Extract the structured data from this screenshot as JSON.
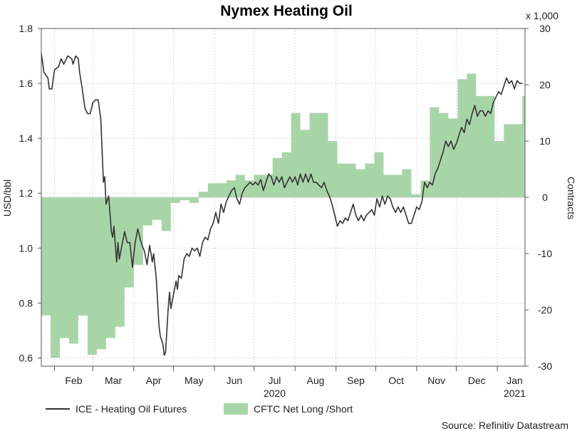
{
  "chart_data": {
    "type": "line",
    "title": "Nymex Heating Oil",
    "source": "Source: Refinitiv Datastream",
    "left_axis": {
      "label": "USD/bbl",
      "range": [
        0.57,
        1.8
      ],
      "ticks": [
        "0.6",
        "0.8",
        "1.0",
        "1.2",
        "1.4",
        "1.6",
        "1.8"
      ]
    },
    "right_axis": {
      "label": "Contracts",
      "multiplier": "x 1,000",
      "range": [
        -30,
        30
      ],
      "ticks": [
        "-30",
        "-20",
        "-10",
        "0",
        "10",
        "20",
        "30"
      ]
    },
    "x_months": [
      "Feb",
      "Mar",
      "Apr",
      "May",
      "Jun",
      "Jul",
      "Aug",
      "Sep",
      "Oct",
      "Nov",
      "Dec",
      "Jan"
    ],
    "x_years": [
      "2020",
      "2021"
    ],
    "x_range": [
      "2020-01-22",
      "2021-01-22"
    ],
    "grid": true,
    "legend": {
      "placement": "bottom"
    },
    "series": [
      {
        "name": "ICE - Heating Oil Futures",
        "axis": "left",
        "color": "#333333",
        "points": [
          [
            "2020-01-22",
            1.71
          ],
          [
            "2020-01-24",
            1.64
          ],
          [
            "2020-01-27",
            1.62
          ],
          [
            "2020-01-28",
            1.58
          ],
          [
            "2020-01-30",
            1.58
          ],
          [
            "2020-02-01",
            1.65
          ],
          [
            "2020-02-04",
            1.66
          ],
          [
            "2020-02-06",
            1.69
          ],
          [
            "2020-02-08",
            1.67
          ],
          [
            "2020-02-11",
            1.7
          ],
          [
            "2020-02-14",
            1.69
          ],
          [
            "2020-02-15",
            1.67
          ],
          [
            "2020-02-17",
            1.7
          ],
          [
            "2020-02-19",
            1.69
          ],
          [
            "2020-02-20",
            1.64
          ],
          [
            "2020-02-22",
            1.58
          ],
          [
            "2020-02-24",
            1.51
          ],
          [
            "2020-02-26",
            1.49
          ],
          [
            "2020-02-28",
            1.49
          ],
          [
            "2020-03-01",
            1.53
          ],
          [
            "2020-03-03",
            1.54
          ],
          [
            "2020-03-05",
            1.54
          ],
          [
            "2020-03-07",
            1.47
          ],
          [
            "2020-03-09",
            1.24
          ],
          [
            "2020-03-10",
            1.26
          ],
          [
            "2020-03-11",
            1.16
          ],
          [
            "2020-03-13",
            1.19
          ],
          [
            "2020-03-15",
            1.06
          ],
          [
            "2020-03-16",
            1.04
          ],
          [
            "2020-03-17",
            1.08
          ],
          [
            "2020-03-19",
            0.95
          ],
          [
            "2020-03-20",
            1.02
          ],
          [
            "2020-03-21",
            0.96
          ],
          [
            "2020-03-23",
            1.01
          ],
          [
            "2020-03-25",
            1.06
          ],
          [
            "2020-03-27",
            1.02
          ],
          [
            "2020-03-29",
            1.02
          ],
          [
            "2020-03-31",
            0.93
          ],
          [
            "2020-04-02",
            1.02
          ],
          [
            "2020-04-04",
            1.07
          ],
          [
            "2020-04-06",
            1.03
          ],
          [
            "2020-04-08",
            1.0
          ],
          [
            "2020-04-09",
            0.99
          ],
          [
            "2020-04-11",
            0.94
          ],
          [
            "2020-04-13",
            1.01
          ],
          [
            "2020-04-15",
            0.95
          ],
          [
            "2020-04-16",
            0.98
          ],
          [
            "2020-04-18",
            0.89
          ],
          [
            "2020-04-20",
            0.72
          ],
          [
            "2020-04-21",
            0.68
          ],
          [
            "2020-04-23",
            0.65
          ],
          [
            "2020-04-24",
            0.61
          ],
          [
            "2020-04-25",
            0.62
          ],
          [
            "2020-04-27",
            0.78
          ],
          [
            "2020-04-28",
            0.84
          ],
          [
            "2020-04-29",
            0.78
          ],
          [
            "2020-05-01",
            0.83
          ],
          [
            "2020-05-03",
            0.88
          ],
          [
            "2020-05-04",
            0.85
          ],
          [
            "2020-05-05",
            0.9
          ],
          [
            "2020-05-07",
            0.89
          ],
          [
            "2020-05-09",
            0.96
          ],
          [
            "2020-05-11",
            0.98
          ],
          [
            "2020-05-13",
            0.97
          ],
          [
            "2020-05-15",
            1.0
          ],
          [
            "2020-05-17",
            0.99
          ],
          [
            "2020-05-19",
            1.0
          ],
          [
            "2020-05-21",
            0.97
          ],
          [
            "2020-05-23",
            1.02
          ],
          [
            "2020-05-25",
            1.04
          ],
          [
            "2020-05-27",
            1.03
          ],
          [
            "2020-05-29",
            1.07
          ],
          [
            "2020-05-31",
            1.09
          ],
          [
            "2020-06-02",
            1.13
          ],
          [
            "2020-06-04",
            1.09
          ],
          [
            "2020-06-06",
            1.16
          ],
          [
            "2020-06-08",
            1.13
          ],
          [
            "2020-06-10",
            1.17
          ],
          [
            "2020-06-12",
            1.19
          ],
          [
            "2020-06-14",
            1.21
          ],
          [
            "2020-06-16",
            1.22
          ],
          [
            "2020-06-18",
            1.18
          ],
          [
            "2020-06-20",
            1.16
          ],
          [
            "2020-06-22",
            1.2
          ],
          [
            "2020-06-24",
            1.22
          ],
          [
            "2020-06-26",
            1.23
          ],
          [
            "2020-06-28",
            1.24
          ],
          [
            "2020-06-30",
            1.23
          ],
          [
            "2020-07-02",
            1.24
          ],
          [
            "2020-07-04",
            1.23
          ],
          [
            "2020-07-06",
            1.25
          ],
          [
            "2020-07-08",
            1.21
          ],
          [
            "2020-07-10",
            1.24
          ],
          [
            "2020-07-12",
            1.27
          ],
          [
            "2020-07-14",
            1.26
          ],
          [
            "2020-07-16",
            1.23
          ],
          [
            "2020-07-18",
            1.26
          ],
          [
            "2020-07-20",
            1.24
          ],
          [
            "2020-07-22",
            1.26
          ],
          [
            "2020-07-24",
            1.22
          ],
          [
            "2020-07-26",
            1.24
          ],
          [
            "2020-07-28",
            1.26
          ],
          [
            "2020-07-30",
            1.24
          ],
          [
            "2020-08-01",
            1.26
          ],
          [
            "2020-08-03",
            1.23
          ],
          [
            "2020-08-05",
            1.27
          ],
          [
            "2020-08-07",
            1.24
          ],
          [
            "2020-08-09",
            1.27
          ],
          [
            "2020-08-11",
            1.24
          ],
          [
            "2020-08-13",
            1.27
          ],
          [
            "2020-08-15",
            1.24
          ],
          [
            "2020-08-17",
            1.24
          ],
          [
            "2020-08-19",
            1.23
          ],
          [
            "2020-08-21",
            1.22
          ],
          [
            "2020-08-23",
            1.24
          ],
          [
            "2020-08-25",
            1.21
          ],
          [
            "2020-08-27",
            1.19
          ],
          [
            "2020-08-29",
            1.16
          ],
          [
            "2020-08-31",
            1.12
          ],
          [
            "2020-09-02",
            1.08
          ],
          [
            "2020-09-04",
            1.1
          ],
          [
            "2020-09-06",
            1.09
          ],
          [
            "2020-09-08",
            1.11
          ],
          [
            "2020-09-10",
            1.1
          ],
          [
            "2020-09-12",
            1.13
          ],
          [
            "2020-09-14",
            1.16
          ],
          [
            "2020-09-16",
            1.12
          ],
          [
            "2020-09-18",
            1.1
          ],
          [
            "2020-09-20",
            1.12
          ],
          [
            "2020-09-22",
            1.1
          ],
          [
            "2020-09-24",
            1.12
          ],
          [
            "2020-09-26",
            1.13
          ],
          [
            "2020-09-28",
            1.14
          ],
          [
            "2020-09-30",
            1.12
          ],
          [
            "2020-10-02",
            1.18
          ],
          [
            "2020-10-04",
            1.15
          ],
          [
            "2020-10-06",
            1.19
          ],
          [
            "2020-10-08",
            1.16
          ],
          [
            "2020-10-10",
            1.19
          ],
          [
            "2020-10-12",
            1.18
          ],
          [
            "2020-10-14",
            1.15
          ],
          [
            "2020-10-16",
            1.13
          ],
          [
            "2020-10-18",
            1.15
          ],
          [
            "2020-10-20",
            1.13
          ],
          [
            "2020-10-22",
            1.15
          ],
          [
            "2020-10-24",
            1.12
          ],
          [
            "2020-10-26",
            1.09
          ],
          [
            "2020-10-28",
            1.09
          ],
          [
            "2020-10-30",
            1.12
          ],
          [
            "2020-11-01",
            1.15
          ],
          [
            "2020-11-03",
            1.14
          ],
          [
            "2020-11-05",
            1.17
          ],
          [
            "2020-11-07",
            1.24
          ],
          [
            "2020-11-09",
            1.22
          ],
          [
            "2020-11-11",
            1.24
          ],
          [
            "2020-11-13",
            1.23
          ],
          [
            "2020-11-15",
            1.27
          ],
          [
            "2020-11-17",
            1.29
          ],
          [
            "2020-11-19",
            1.32
          ],
          [
            "2020-11-21",
            1.35
          ],
          [
            "2020-11-23",
            1.39
          ],
          [
            "2020-11-25",
            1.37
          ],
          [
            "2020-11-27",
            1.39
          ],
          [
            "2020-11-29",
            1.36
          ],
          [
            "2020-12-01",
            1.38
          ],
          [
            "2020-12-03",
            1.41
          ],
          [
            "2020-12-05",
            1.44
          ],
          [
            "2020-12-07",
            1.42
          ],
          [
            "2020-12-09",
            1.47
          ],
          [
            "2020-12-11",
            1.45
          ],
          [
            "2020-12-13",
            1.49
          ],
          [
            "2020-12-15",
            1.52
          ],
          [
            "2020-12-17",
            1.48
          ],
          [
            "2020-12-19",
            1.5
          ],
          [
            "2020-12-21",
            1.5
          ],
          [
            "2020-12-23",
            1.48
          ],
          [
            "2020-12-25",
            1.5
          ],
          [
            "2020-12-27",
            1.49
          ],
          [
            "2020-12-29",
            1.53
          ],
          [
            "2020-12-31",
            1.55
          ],
          [
            "2021-01-02",
            1.57
          ],
          [
            "2021-01-04",
            1.56
          ],
          [
            "2021-01-06",
            1.59
          ],
          [
            "2021-01-08",
            1.62
          ],
          [
            "2021-01-10",
            1.6
          ],
          [
            "2021-01-12",
            1.61
          ],
          [
            "2021-01-14",
            1.58
          ],
          [
            "2021-01-16",
            1.61
          ],
          [
            "2021-01-18",
            1.6
          ],
          [
            "2021-01-20",
            1.6
          ]
        ]
      },
      {
        "name": "CFTC Net Long /Short",
        "axis": "right",
        "color": "#a8d5a8",
        "type": "area",
        "points": [
          [
            "2020-01-22",
            -21
          ],
          [
            "2020-01-29",
            -28.5
          ],
          [
            "2020-02-05",
            -25
          ],
          [
            "2020-02-12",
            -26
          ],
          [
            "2020-02-19",
            -21
          ],
          [
            "2020-02-26",
            -28
          ],
          [
            "2020-03-04",
            -27
          ],
          [
            "2020-03-11",
            -25
          ],
          [
            "2020-03-18",
            -23
          ],
          [
            "2020-03-25",
            -16
          ],
          [
            "2020-04-01",
            -12
          ],
          [
            "2020-04-08",
            -5
          ],
          [
            "2020-04-15",
            -4
          ],
          [
            "2020-04-22",
            -6
          ],
          [
            "2020-04-29",
            -1
          ],
          [
            "2020-05-06",
            -0.5
          ],
          [
            "2020-05-13",
            -1
          ],
          [
            "2020-05-20",
            1
          ],
          [
            "2020-05-27",
            2.5
          ],
          [
            "2020-06-03",
            2.5
          ],
          [
            "2020-06-10",
            3
          ],
          [
            "2020-06-17",
            4
          ],
          [
            "2020-06-24",
            3
          ],
          [
            "2020-07-01",
            4
          ],
          [
            "2020-07-08",
            4
          ],
          [
            "2020-07-15",
            7
          ],
          [
            "2020-07-22",
            8
          ],
          [
            "2020-07-29",
            15
          ],
          [
            "2020-08-05",
            12
          ],
          [
            "2020-08-12",
            15
          ],
          [
            "2020-08-19",
            15
          ],
          [
            "2020-08-26",
            10
          ],
          [
            "2020-09-02",
            6
          ],
          [
            "2020-09-09",
            6
          ],
          [
            "2020-09-16",
            5
          ],
          [
            "2020-09-23",
            6
          ],
          [
            "2020-09-30",
            8
          ],
          [
            "2020-10-07",
            4
          ],
          [
            "2020-10-14",
            4
          ],
          [
            "2020-10-21",
            5
          ],
          [
            "2020-10-28",
            0.5
          ],
          [
            "2020-11-04",
            3
          ],
          [
            "2020-11-11",
            16
          ],
          [
            "2020-11-18",
            15
          ],
          [
            "2020-11-25",
            14
          ],
          [
            "2020-12-02",
            21
          ],
          [
            "2020-12-09",
            22
          ],
          [
            "2020-12-16",
            18
          ],
          [
            "2020-12-23",
            18
          ],
          [
            "2020-12-30",
            10
          ],
          [
            "2021-01-06",
            13
          ],
          [
            "2021-01-13",
            13
          ],
          [
            "2021-01-20",
            18
          ]
        ]
      }
    ]
  }
}
